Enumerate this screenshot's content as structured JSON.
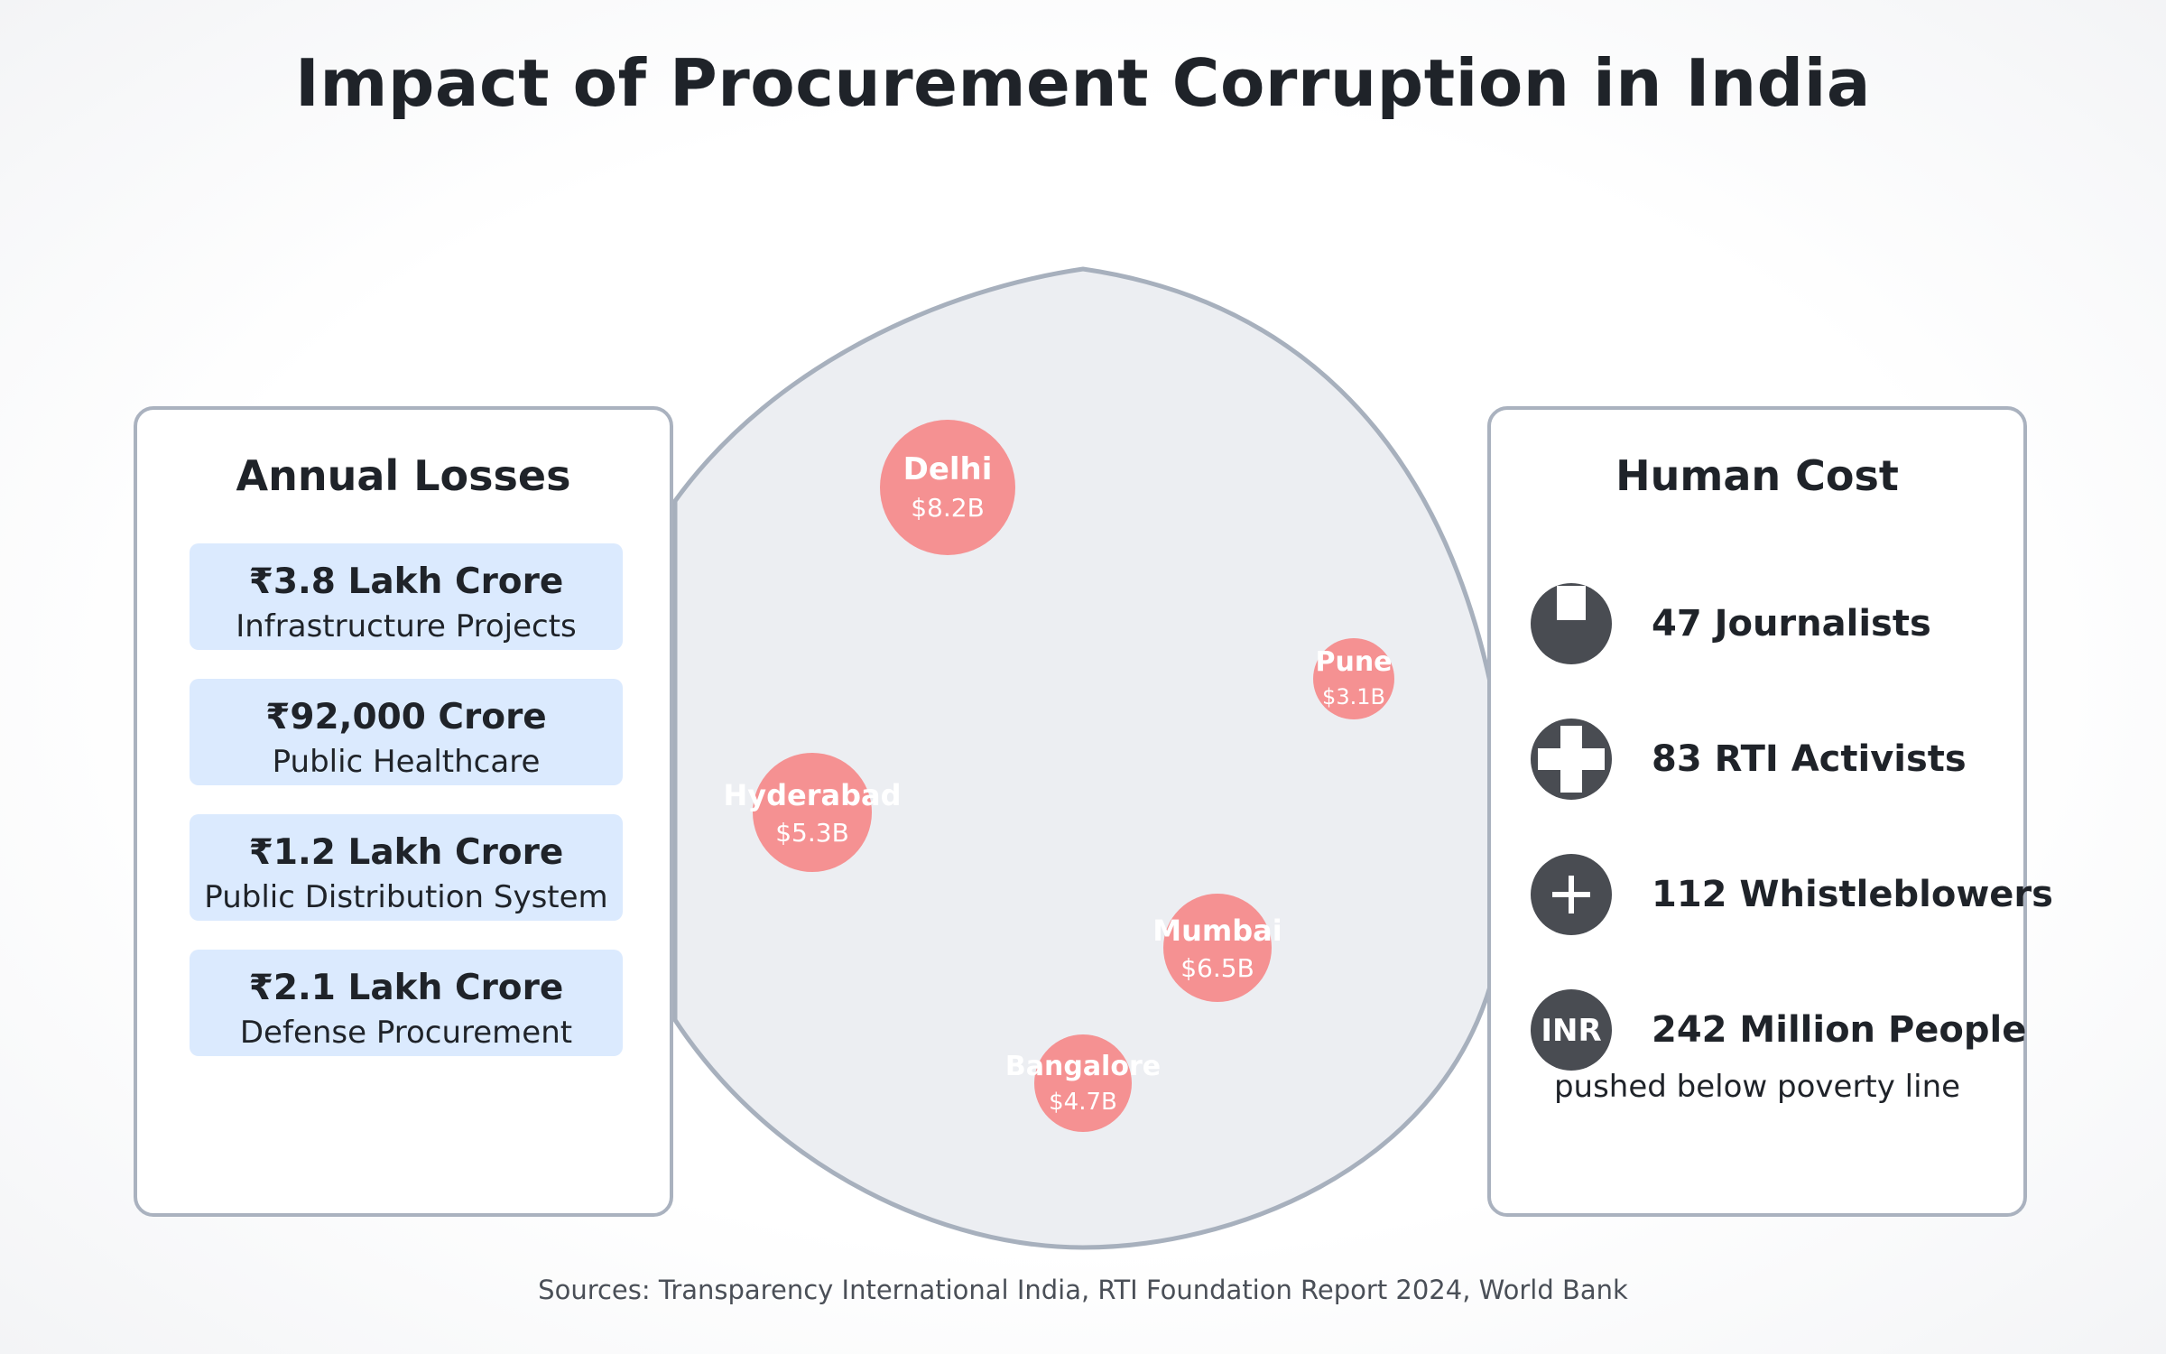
{
  "title": "Impact of Procurement Corruption in India",
  "colors": {
    "city_bubble": "#f87171",
    "map_fill": "#eceef2",
    "map_stroke": "#a7b0bd",
    "loss_card": "#dbeafe",
    "icon_bg": "#494c52"
  },
  "annual_losses": {
    "heading": "Annual Losses",
    "items": [
      {
        "amount": "₹3.8 Lakh Crore",
        "label": "Infrastructure Projects"
      },
      {
        "amount": "₹92,000 Crore",
        "label": "Public Healthcare"
      },
      {
        "amount": "₹1.2 Lakh Crore",
        "label": "Public Distribution System"
      },
      {
        "amount": "₹2.1 Lakh Crore",
        "label": "Defense Procurement"
      }
    ]
  },
  "human_cost": {
    "heading": "Human Cost",
    "items": [
      {
        "icon": "journalist-icon",
        "text": "47 Journalists"
      },
      {
        "icon": "medical-cross-icon",
        "text": "83 RTI Activists"
      },
      {
        "icon": "plus-icon",
        "text": "112 Whistleblowers"
      },
      {
        "icon": "inr-icon",
        "icon_text": "INR",
        "text": "242 Million People"
      }
    ],
    "footnote": "pushed below poverty line"
  },
  "cities": [
    {
      "name": "Delhi",
      "value": "$8.2B",
      "amount_billion": 8.2
    },
    {
      "name": "Pune",
      "value": "$3.1B",
      "amount_billion": 3.1
    },
    {
      "name": "Hyderabad",
      "value": "$5.3B",
      "amount_billion": 5.3
    },
    {
      "name": "Mumbai",
      "value": "$6.5B",
      "amount_billion": 6.5
    },
    {
      "name": "Bangalore",
      "value": "$4.7B",
      "amount_billion": 4.7
    }
  ],
  "sources": "Sources: Transparency International India, RTI Foundation Report 2024, World Bank"
}
